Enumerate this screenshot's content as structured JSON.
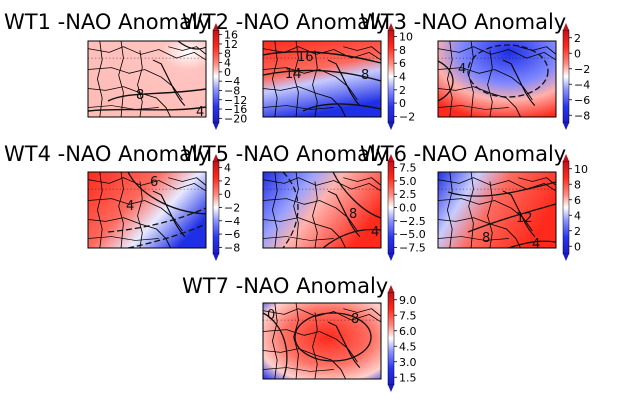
{
  "panels": [
    {
      "id": "wt1",
      "title": "WT1 -NAO Anomaly",
      "colorbar_ticks": [
        "16",
        "12",
        "8",
        "4",
        "0",
        "−4",
        "−8",
        "−12",
        "−16",
        "−20"
      ],
      "contour_labels": [
        "8",
        "4"
      ]
    },
    {
      "id": "wt2",
      "title": "WT2 -NAO Anomaly",
      "colorbar_ticks": [
        "10",
        "8",
        "6",
        "4",
        "2",
        "0",
        "−2"
      ],
      "contour_labels": [
        "16",
        "14",
        "8"
      ]
    },
    {
      "id": "wt3",
      "title": "WT3 -NAO Anomaly",
      "colorbar_ticks": [
        "2",
        "0",
        "−2",
        "−4",
        "−6",
        "−8"
      ],
      "contour_labels": [
        "4"
      ]
    },
    {
      "id": "wt4",
      "title": "WT4 -NAO Anomaly",
      "colorbar_ticks": [
        "4",
        "2",
        "0",
        "−2",
        "−4",
        "−6",
        "−8"
      ],
      "contour_labels": [
        "6",
        "4"
      ]
    },
    {
      "id": "wt5",
      "title": "WT5 -NAO Anomaly",
      "colorbar_ticks": [
        "7.5",
        "5.0",
        "2.5",
        "0.0",
        "−2.5",
        "−5.0",
        "−7.5"
      ],
      "contour_labels": [
        "8",
        "4"
      ]
    },
    {
      "id": "wt6",
      "title": "WT6 -NAO Anomaly",
      "colorbar_ticks": [
        "10",
        "8",
        "6",
        "4",
        "2",
        "0"
      ],
      "contour_labels": [
        "12",
        "8",
        "4"
      ]
    },
    {
      "id": "wt7",
      "title": "WT7 -NAO Anomaly",
      "colorbar_ticks": [
        "9.0",
        "7.5",
        "6.0",
        "4.5",
        "3.0",
        "1.5"
      ],
      "contour_labels": [
        "0",
        "8"
      ]
    }
  ],
  "colors": {
    "positive": "#e8281e",
    "negative": "#1f2fe6",
    "neutral": "#ffffff",
    "land_lines": "#000000"
  }
}
